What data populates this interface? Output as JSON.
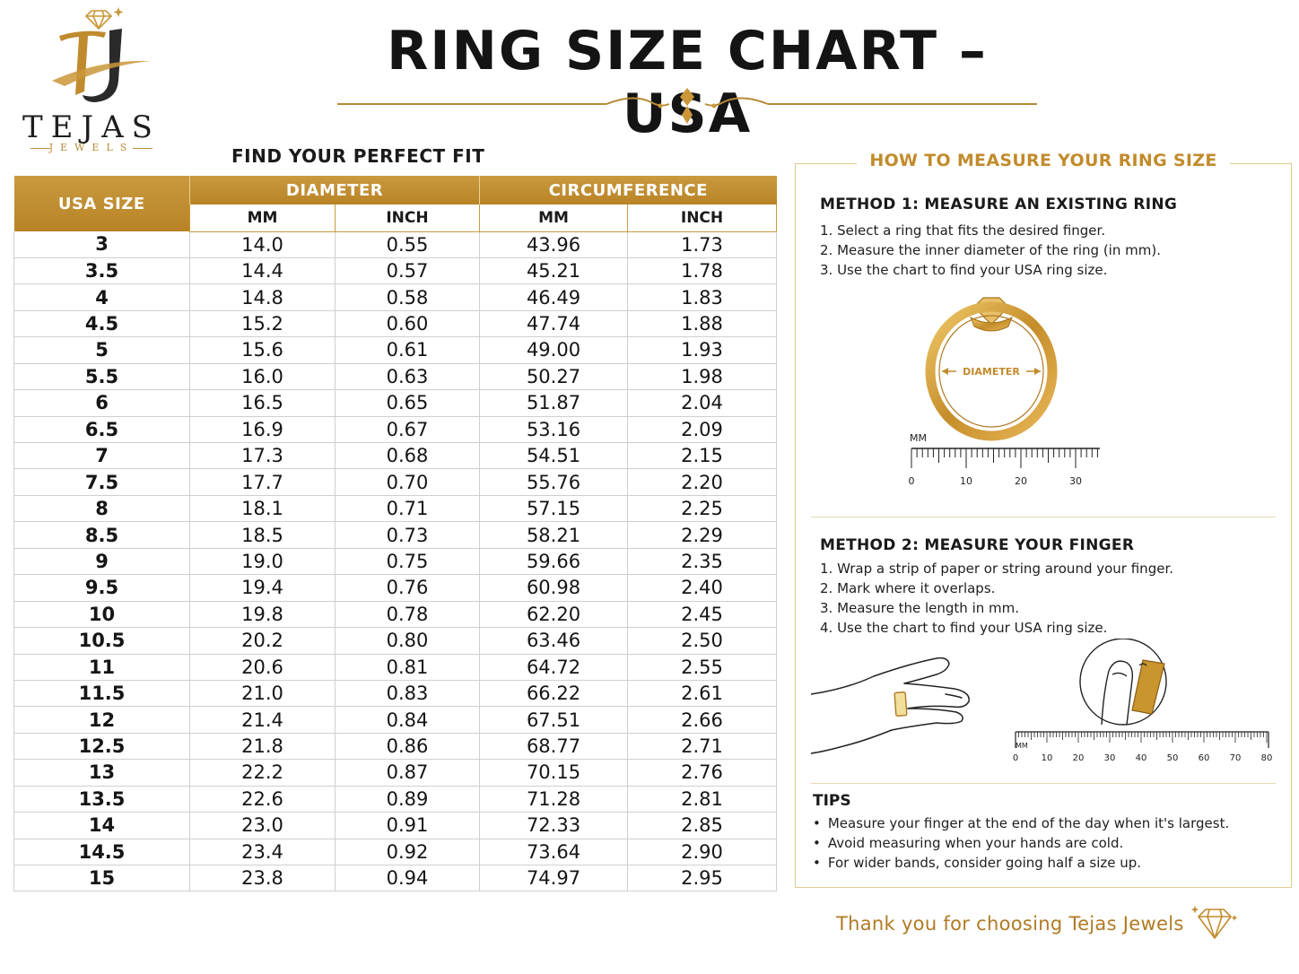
{
  "brand": {
    "name": "TEJAS",
    "sub": "JEWELS",
    "monogram": "TJ"
  },
  "title": "RING SIZE CHART – USA",
  "table": {
    "heading": "FIND YOUR PERFECT FIT",
    "col_size": "USA SIZE",
    "group_diameter": "DIAMETER",
    "group_circumference": "CIRCUMFERENCE",
    "sub_mm": "MM",
    "sub_inch": "INCH",
    "rows": [
      [
        "3",
        "14.0",
        "0.55",
        "43.96",
        "1.73"
      ],
      [
        "3.5",
        "14.4",
        "0.57",
        "45.21",
        "1.78"
      ],
      [
        "4",
        "14.8",
        "0.58",
        "46.49",
        "1.83"
      ],
      [
        "4.5",
        "15.2",
        "0.60",
        "47.74",
        "1.88"
      ],
      [
        "5",
        "15.6",
        "0.61",
        "49.00",
        "1.93"
      ],
      [
        "5.5",
        "16.0",
        "0.63",
        "50.27",
        "1.98"
      ],
      [
        "6",
        "16.5",
        "0.65",
        "51.87",
        "2.04"
      ],
      [
        "6.5",
        "16.9",
        "0.67",
        "53.16",
        "2.09"
      ],
      [
        "7",
        "17.3",
        "0.68",
        "54.51",
        "2.15"
      ],
      [
        "7.5",
        "17.7",
        "0.70",
        "55.76",
        "2.20"
      ],
      [
        "8",
        "18.1",
        "0.71",
        "57.15",
        "2.25"
      ],
      [
        "8.5",
        "18.5",
        "0.73",
        "58.21",
        "2.29"
      ],
      [
        "9",
        "19.0",
        "0.75",
        "59.66",
        "2.35"
      ],
      [
        "9.5",
        "19.4",
        "0.76",
        "60.98",
        "2.40"
      ],
      [
        "10",
        "19.8",
        "0.78",
        "62.20",
        "2.45"
      ],
      [
        "10.5",
        "20.2",
        "0.80",
        "63.46",
        "2.50"
      ],
      [
        "11",
        "20.6",
        "0.81",
        "64.72",
        "2.55"
      ],
      [
        "11.5",
        "21.0",
        "0.83",
        "66.22",
        "2.61"
      ],
      [
        "12",
        "21.4",
        "0.84",
        "67.51",
        "2.66"
      ],
      [
        "12.5",
        "21.8",
        "0.86",
        "68.77",
        "2.71"
      ],
      [
        "13",
        "22.2",
        "0.87",
        "70.15",
        "2.76"
      ],
      [
        "13.5",
        "22.6",
        "0.89",
        "71.28",
        "2.81"
      ],
      [
        "14",
        "23.0",
        "0.91",
        "72.33",
        "2.85"
      ],
      [
        "14.5",
        "23.4",
        "0.92",
        "73.64",
        "2.90"
      ],
      [
        "15",
        "23.8",
        "0.94",
        "74.97",
        "2.95"
      ]
    ]
  },
  "measure": {
    "heading": "HOW TO MEASURE YOUR RING SIZE",
    "method1": {
      "title": "METHOD 1: MEASURE AN EXISTING RING",
      "steps": [
        "1. Select a ring that fits the desired finger.",
        "2. Measure the inner diameter of the ring (in mm).",
        "3. Use the chart to find your USA ring size."
      ],
      "diameter_label": "DIAMETER",
      "ruler_unit": "MM",
      "ruler_ticks": [
        "0",
        "10",
        "20",
        "30"
      ]
    },
    "method2": {
      "title": "METHOD 2: MEASURE YOUR FINGER",
      "steps": [
        "1. Wrap a strip of paper or string around your finger.",
        "2. Mark where it overlaps.",
        "3. Measure the length in mm.",
        "4. Use the chart to find your USA ring size."
      ],
      "ruler_unit": "MM",
      "ruler_ticks": [
        "0",
        "10",
        "20",
        "30",
        "40",
        "50",
        "60",
        "70",
        "80"
      ]
    },
    "tips": {
      "title": "TIPS",
      "items": [
        "Measure your finger at the end of the day when it's largest.",
        "Avoid measuring when your hands are cold.",
        "For wider bands, consider going half a size up."
      ]
    }
  },
  "footer": {
    "thanks": "Thank you for choosing Tejas Jewels"
  },
  "colors": {
    "gold": "#c28b2c",
    "header_gold": "#c99a3f",
    "text": "#1a1a1a"
  },
  "icons": {
    "logo": "diamond-crown-monogram-icon",
    "title_ornament": "flourish-divider-icon",
    "footer": "diamond-icon"
  }
}
